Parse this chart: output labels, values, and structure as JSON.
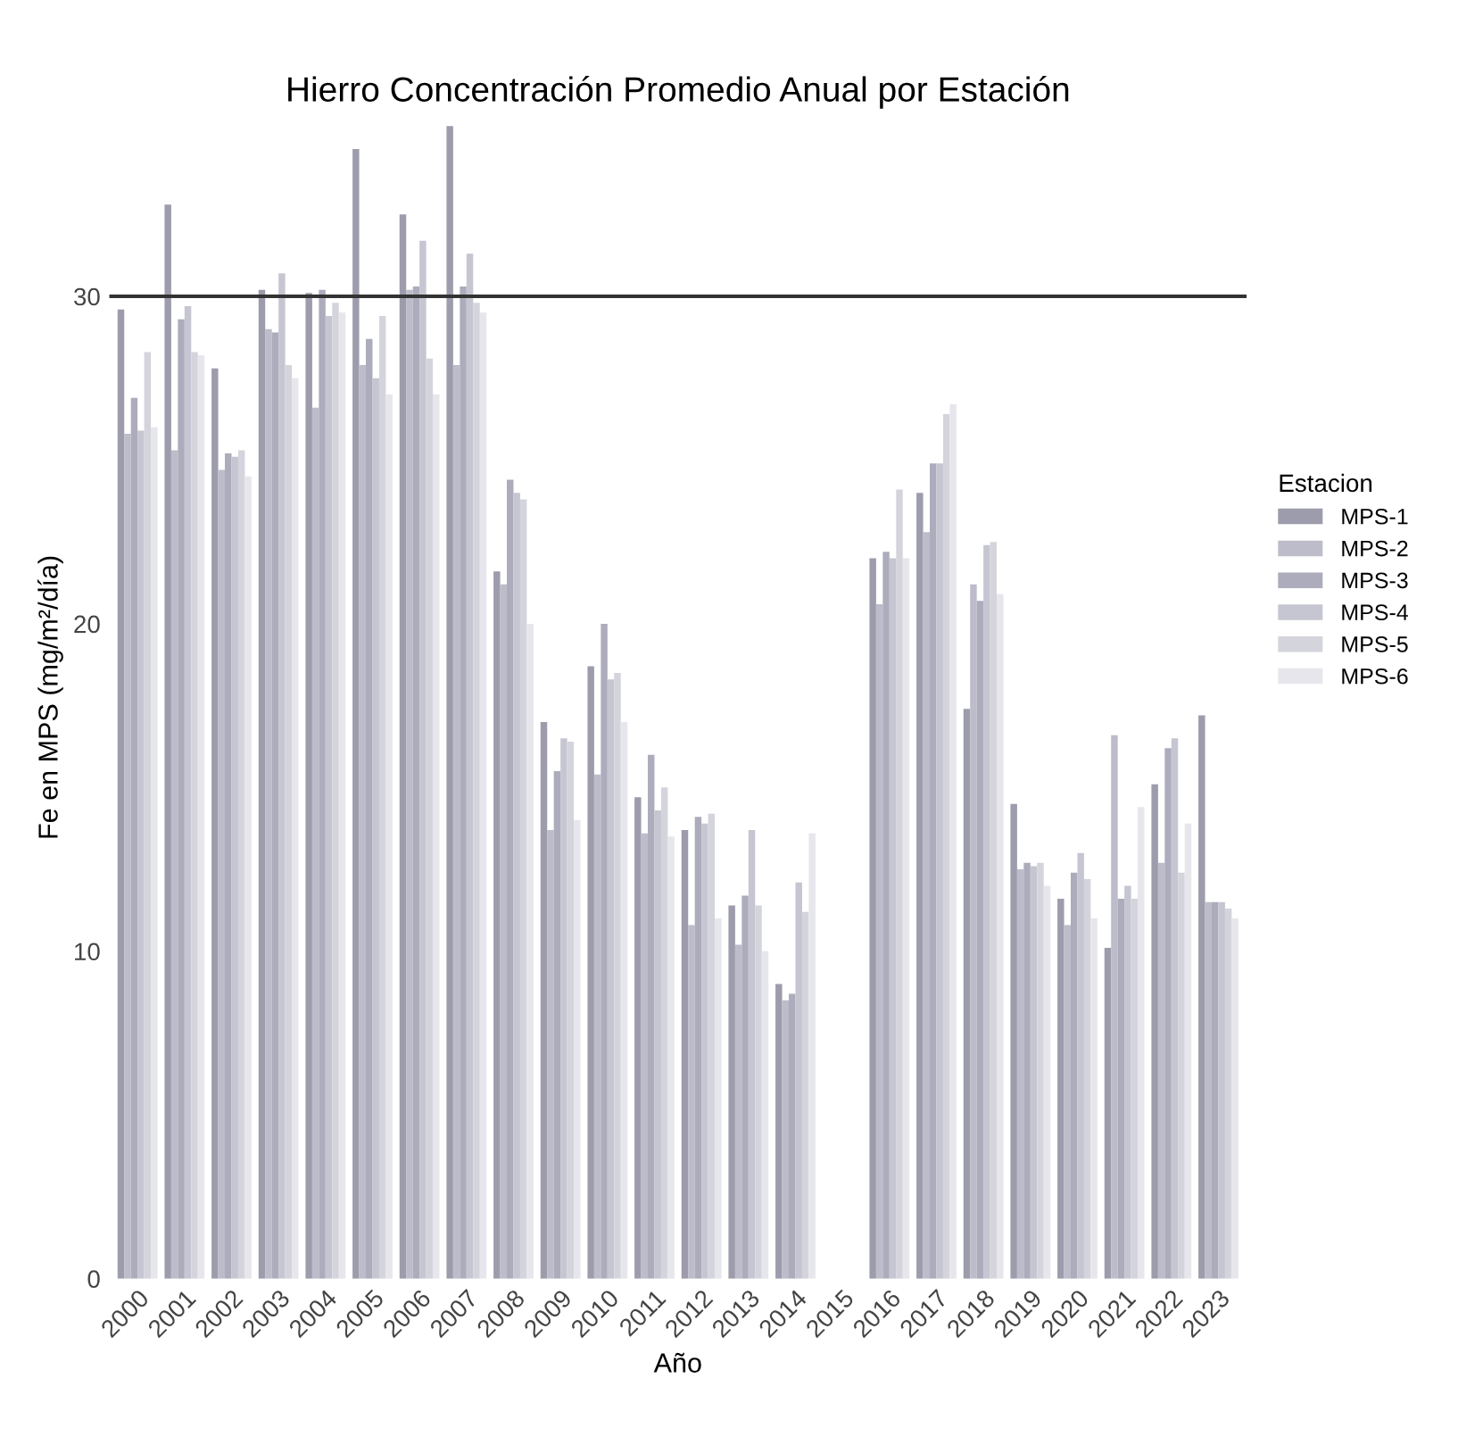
{
  "chart_data": {
    "type": "bar",
    "title": "Hierro Concentración Promedio Anual por Estación",
    "xlabel": "Año",
    "ylabel": "Fe en MPS (mg/m²/día)",
    "legend_title": "Estacion",
    "legend": "right",
    "grid": false,
    "categories": [
      "2000",
      "2001",
      "2002",
      "2003",
      "2004",
      "2005",
      "2006",
      "2007",
      "2008",
      "2009",
      "2010",
      "2011",
      "2012",
      "2013",
      "2014",
      "2015",
      "2016",
      "2017",
      "2018",
      "2019",
      "2020",
      "2021",
      "2022",
      "2023"
    ],
    "ylim": [
      0,
      35.5
    ],
    "yticks": [
      0,
      10,
      20,
      30
    ],
    "ref_lines": [
      {
        "axis": "y",
        "value": 30,
        "color": "#333333",
        "line_style": "solid"
      }
    ],
    "series": [
      {
        "name": "MPS-1",
        "color": "#9c9cac",
        "values": [
          29.6,
          32.8,
          27.8,
          30.2,
          30.1,
          34.5,
          32.5,
          35.2,
          21.6,
          17.0,
          18.7,
          14.7,
          13.7,
          11.4,
          9.0,
          null,
          22.0,
          24.0,
          17.4,
          14.5,
          11.6,
          10.1,
          15.1,
          17.2
        ]
      },
      {
        "name": "MPS-2",
        "color": "#bcbcca",
        "values": [
          25.8,
          25.3,
          24.7,
          29.0,
          26.6,
          27.9,
          30.2,
          27.9,
          21.2,
          13.7,
          15.4,
          13.6,
          10.8,
          10.2,
          8.5,
          null,
          20.6,
          22.8,
          21.2,
          12.5,
          10.8,
          16.6,
          12.7,
          11.5
        ]
      },
      {
        "name": "MPS-3",
        "color": "#acacbc",
        "values": [
          26.9,
          29.3,
          25.2,
          28.9,
          30.2,
          28.7,
          30.3,
          30.3,
          24.4,
          15.5,
          20.0,
          16.0,
          14.1,
          11.7,
          8.7,
          null,
          22.2,
          24.9,
          20.7,
          12.7,
          12.4,
          11.6,
          16.2,
          11.5
        ]
      },
      {
        "name": "MPS-4",
        "color": "#c6c6d2",
        "values": [
          25.9,
          29.7,
          25.1,
          30.7,
          29.4,
          27.5,
          31.7,
          31.3,
          24.0,
          16.5,
          18.3,
          14.3,
          13.9,
          13.7,
          12.1,
          null,
          22.0,
          24.9,
          22.4,
          12.6,
          13.0,
          12.0,
          16.5,
          11.5
        ]
      },
      {
        "name": "MPS-5",
        "color": "#d4d4dc",
        "values": [
          28.3,
          28.3,
          25.3,
          27.9,
          29.8,
          29.4,
          28.1,
          29.8,
          23.8,
          16.4,
          18.5,
          15.0,
          14.2,
          11.4,
          11.2,
          null,
          24.1,
          26.4,
          22.5,
          12.7,
          12.2,
          11.6,
          12.4,
          11.3
        ]
      },
      {
        "name": "MPS-6",
        "color": "#e6e6ec",
        "values": [
          26.0,
          28.2,
          24.5,
          27.5,
          29.5,
          27.0,
          27.0,
          29.5,
          20.0,
          14.0,
          17.0,
          13.5,
          11.0,
          10.0,
          13.6,
          null,
          22.0,
          26.7,
          20.9,
          12.0,
          11.0,
          14.4,
          13.9,
          11.0
        ]
      }
    ]
  }
}
